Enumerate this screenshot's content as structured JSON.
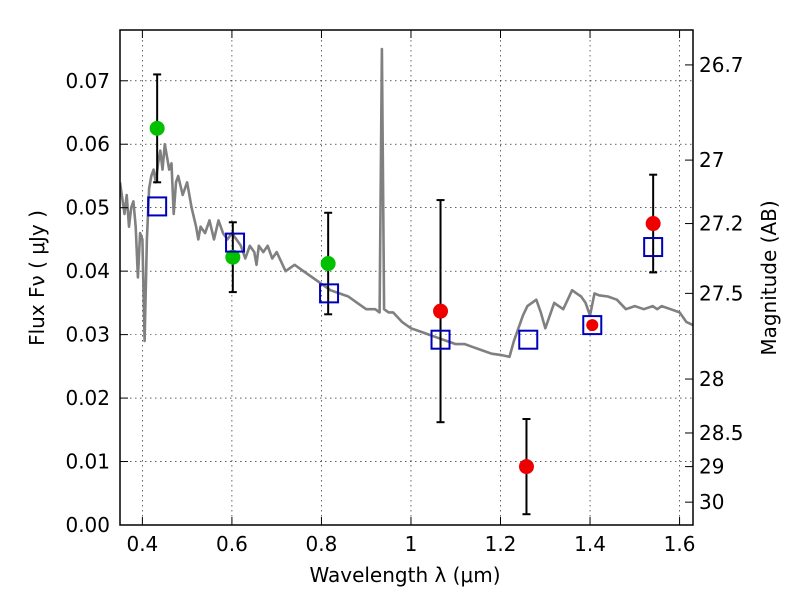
{
  "chart_data": {
    "type": "scatter",
    "xlabel": "Wavelength  λ (μm)",
    "ylabel": "Flux  Fν  ( μJy )",
    "ylabel_right": "Magnitude (AB)",
    "xlim": [
      0.35,
      1.63
    ],
    "ylim": [
      0.0,
      0.078
    ],
    "x_ticks": [
      0.4,
      0.6,
      0.8,
      1.0,
      1.2,
      1.4,
      1.6
    ],
    "x_tick_labels": [
      "0.4",
      "0.6",
      "0.8",
      "1",
      "1.2",
      "1.4",
      "1.6"
    ],
    "y_ticks": [
      0.0,
      0.01,
      0.02,
      0.03,
      0.04,
      0.05,
      0.06,
      0.07
    ],
    "y_tick_labels": [
      "0.00",
      "0.01",
      "0.02",
      "0.03",
      "0.04",
      "0.05",
      "0.06",
      "0.07"
    ],
    "right_ticks": [
      {
        "flux": 0.0725,
        "label": "26.7"
      },
      {
        "flux": 0.0575,
        "label": "27"
      },
      {
        "flux": 0.0475,
        "label": "27.2"
      },
      {
        "flux": 0.0365,
        "label": "27.5"
      },
      {
        "flux": 0.023,
        "label": "28"
      },
      {
        "flux": 0.0145,
        "label": "28.5"
      },
      {
        "flux": 0.0092,
        "label": "29"
      },
      {
        "flux": 0.0036,
        "label": "30"
      }
    ],
    "grid": true,
    "series": [
      {
        "kind": "line",
        "color": "#808080",
        "points": [
          [
            0.35,
            0.054
          ],
          [
            0.36,
            0.049
          ],
          [
            0.365,
            0.052
          ],
          [
            0.37,
            0.047
          ],
          [
            0.375,
            0.05
          ],
          [
            0.38,
            0.051
          ],
          [
            0.385,
            0.047
          ],
          [
            0.39,
            0.039
          ],
          [
            0.395,
            0.046
          ],
          [
            0.4,
            0.045
          ],
          [
            0.405,
            0.029
          ],
          [
            0.41,
            0.045
          ],
          [
            0.415,
            0.053
          ],
          [
            0.42,
            0.055
          ],
          [
            0.425,
            0.056
          ],
          [
            0.43,
            0.054
          ],
          [
            0.435,
            0.057
          ],
          [
            0.44,
            0.059
          ],
          [
            0.445,
            0.056
          ],
          [
            0.45,
            0.06
          ],
          [
            0.455,
            0.058
          ],
          [
            0.46,
            0.056
          ],
          [
            0.465,
            0.057
          ],
          [
            0.47,
            0.049
          ],
          [
            0.475,
            0.054
          ],
          [
            0.48,
            0.055
          ],
          [
            0.49,
            0.052
          ],
          [
            0.5,
            0.054
          ],
          [
            0.51,
            0.05
          ],
          [
            0.52,
            0.047
          ],
          [
            0.525,
            0.045
          ],
          [
            0.53,
            0.047
          ],
          [
            0.54,
            0.046
          ],
          [
            0.55,
            0.048
          ],
          [
            0.56,
            0.045
          ],
          [
            0.57,
            0.048
          ],
          [
            0.58,
            0.046
          ],
          [
            0.59,
            0.045
          ],
          [
            0.6,
            0.046
          ],
          [
            0.61,
            0.045
          ],
          [
            0.62,
            0.044
          ],
          [
            0.63,
            0.042
          ],
          [
            0.64,
            0.044
          ],
          [
            0.65,
            0.043
          ],
          [
            0.655,
            0.041
          ],
          [
            0.66,
            0.044
          ],
          [
            0.67,
            0.043
          ],
          [
            0.68,
            0.044
          ],
          [
            0.69,
            0.042
          ],
          [
            0.7,
            0.043
          ],
          [
            0.72,
            0.04
          ],
          [
            0.74,
            0.041
          ],
          [
            0.76,
            0.04
          ],
          [
            0.78,
            0.039
          ],
          [
            0.8,
            0.038
          ],
          [
            0.82,
            0.037
          ],
          [
            0.84,
            0.0365
          ],
          [
            0.86,
            0.036
          ],
          [
            0.88,
            0.035
          ],
          [
            0.9,
            0.034
          ],
          [
            0.92,
            0.034
          ],
          [
            0.93,
            0.0335
          ],
          [
            0.935,
            0.075
          ],
          [
            0.94,
            0.034
          ],
          [
            0.95,
            0.0335
          ],
          [
            0.96,
            0.0335
          ],
          [
            0.98,
            0.032
          ],
          [
            1.0,
            0.031
          ],
          [
            1.02,
            0.0305
          ],
          [
            1.04,
            0.03
          ],
          [
            1.06,
            0.0295
          ],
          [
            1.08,
            0.029
          ],
          [
            1.1,
            0.0285
          ],
          [
            1.12,
            0.0285
          ],
          [
            1.14,
            0.028
          ],
          [
            1.16,
            0.0275
          ],
          [
            1.18,
            0.027
          ],
          [
            1.2,
            0.0268
          ],
          [
            1.22,
            0.0265
          ],
          [
            1.23,
            0.029
          ],
          [
            1.24,
            0.031
          ],
          [
            1.25,
            0.033
          ],
          [
            1.26,
            0.0345
          ],
          [
            1.27,
            0.035
          ],
          [
            1.28,
            0.0355
          ],
          [
            1.29,
            0.0335
          ],
          [
            1.3,
            0.031
          ],
          [
            1.31,
            0.033
          ],
          [
            1.32,
            0.035
          ],
          [
            1.33,
            0.0345
          ],
          [
            1.34,
            0.034
          ],
          [
            1.35,
            0.0355
          ],
          [
            1.36,
            0.037
          ],
          [
            1.37,
            0.0365
          ],
          [
            1.38,
            0.036
          ],
          [
            1.39,
            0.035
          ],
          [
            1.4,
            0.033
          ],
          [
            1.41,
            0.0365
          ],
          [
            1.42,
            0.0362
          ],
          [
            1.44,
            0.036
          ],
          [
            1.46,
            0.0355
          ],
          [
            1.48,
            0.034
          ],
          [
            1.5,
            0.0345
          ],
          [
            1.52,
            0.034
          ],
          [
            1.54,
            0.0345
          ],
          [
            1.55,
            0.034
          ],
          [
            1.56,
            0.0345
          ],
          [
            1.58,
            0.034
          ],
          [
            1.6,
            0.0335
          ],
          [
            1.615,
            0.032
          ],
          [
            1.63,
            0.0315
          ]
        ]
      },
      {
        "kind": "points",
        "marker": "circle",
        "color": "#00c000",
        "points": [
          {
            "x": 0.433,
            "y": 0.0625,
            "yerr": [
              0.0085,
              0.0085
            ]
          },
          {
            "x": 0.602,
            "y": 0.0422,
            "yerr": [
              0.0055,
              0.0055
            ]
          },
          {
            "x": 0.815,
            "y": 0.0412,
            "yerr": [
              0.008,
              0.008
            ]
          }
        ]
      },
      {
        "kind": "points",
        "marker": "circle",
        "color": "#ee0000",
        "points": [
          {
            "x": 1.066,
            "y": 0.0337,
            "yerr": [
              0.0175,
              0.0175
            ]
          },
          {
            "x": 1.258,
            "y": 0.0092,
            "yerr": [
              0.0075,
              0.0075
            ]
          },
          {
            "x": 1.541,
            "y": 0.0475,
            "yerr": [
              0.0077,
              0.0077
            ]
          }
        ]
      },
      {
        "kind": "points",
        "marker": "circle-small",
        "color": "#ee0000",
        "points": [
          {
            "x": 1.405,
            "y": 0.0315
          }
        ]
      },
      {
        "kind": "points",
        "marker": "square",
        "color": "#0000bb",
        "points": [
          {
            "x": 0.433,
            "y": 0.0502
          },
          {
            "x": 0.607,
            "y": 0.0445
          },
          {
            "x": 0.817,
            "y": 0.0365
          },
          {
            "x": 1.066,
            "y": 0.0292
          },
          {
            "x": 1.262,
            "y": 0.0292
          },
          {
            "x": 1.405,
            "y": 0.0315
          },
          {
            "x": 1.541,
            "y": 0.0438
          }
        ]
      }
    ]
  }
}
